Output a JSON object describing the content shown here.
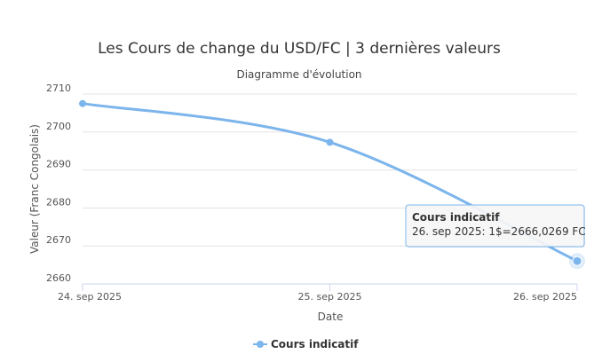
{
  "chart_data": {
    "type": "line",
    "title": "Les Cours de change du USD/FC | 3 dernières valeurs",
    "subtitle": "Diagramme d'évolution",
    "xlabel": "Date",
    "ylabel": "Valeur (Franc Congolais)",
    "x": [
      "24. sep 2025",
      "25. sep 2025",
      "26. sep 2025"
    ],
    "ylim": [
      2660,
      2710
    ],
    "yticks": [
      2660,
      2670,
      2680,
      2690,
      2700,
      2710
    ],
    "grid": true,
    "legend_position": "bottom-center",
    "series": [
      {
        "name": "Cours indicatif",
        "color": "#7cb5ec",
        "values": [
          2707.5,
          2697.3,
          2666.0269
        ]
      }
    ],
    "tooltip": {
      "title": "Cours indicatif",
      "text": "26. sep 2025: 1$=2666,0269 FC",
      "point_index": 2
    }
  }
}
